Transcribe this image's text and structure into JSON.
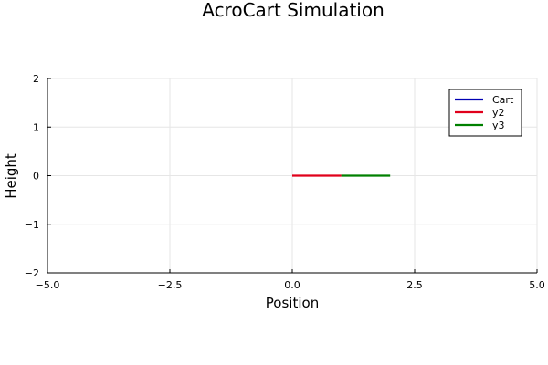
{
  "chart_data": {
    "type": "line",
    "title": "AcroCart Simulation",
    "xlabel": "Position",
    "ylabel": "Height",
    "xlim": [
      -5,
      5
    ],
    "ylim": [
      -2,
      2
    ],
    "xticks": [
      -5.0,
      -2.5,
      0.0,
      2.5,
      5.0
    ],
    "xtick_labels": [
      "−5.0",
      "−2.5",
      "0.0",
      "2.5",
      "5.0"
    ],
    "yticks": [
      -2,
      -1,
      0,
      1,
      2
    ],
    "ytick_labels": [
      "−2",
      "−1",
      "0",
      "1",
      "2"
    ],
    "grid": true,
    "legend_position": "top-right",
    "series": [
      {
        "name": "Cart",
        "color": "#0000b3",
        "x": [
          0,
          0
        ],
        "y": [
          0,
          0
        ]
      },
      {
        "name": "y2",
        "color": "#e0001b",
        "x": [
          0,
          1
        ],
        "y": [
          0,
          0
        ]
      },
      {
        "name": "y3",
        "color": "#008000",
        "x": [
          1,
          2
        ],
        "y": [
          0,
          0
        ]
      }
    ]
  }
}
